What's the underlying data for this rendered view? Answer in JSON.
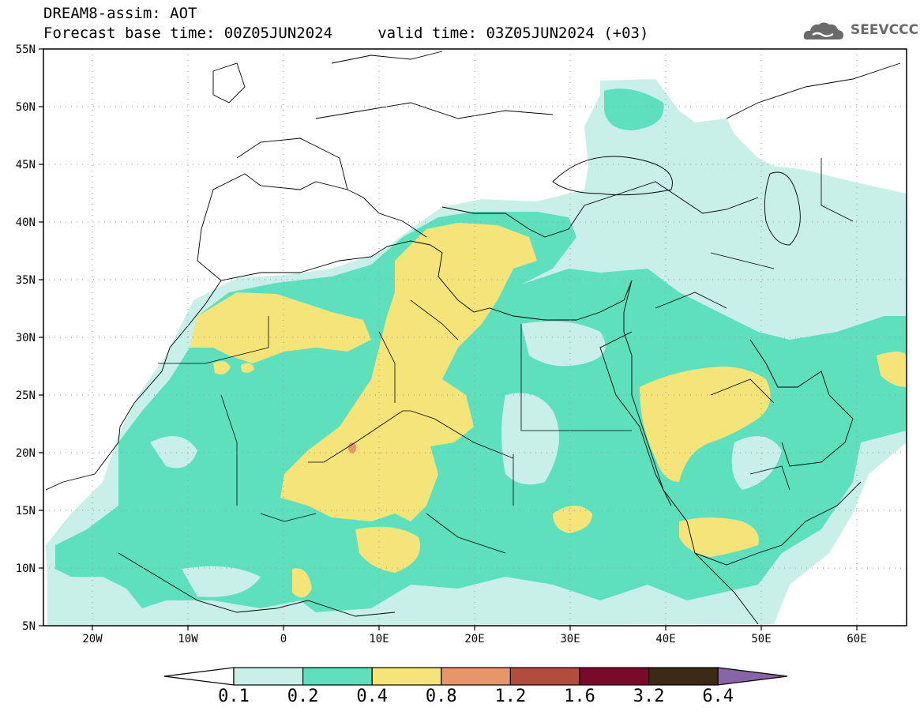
{
  "header": {
    "title_line1": "DREAM8-assim: AOT",
    "title_line2": "Forecast base time: 00Z05JUN2024     valid time: 03Z05JUN2024 (+03)",
    "logo_text": "SEEVCCC"
  },
  "axes": {
    "lat_labels": [
      "55N",
      "50N",
      "45N",
      "40N",
      "35N",
      "30N",
      "25N",
      "20N",
      "15N",
      "10N",
      "5N"
    ],
    "lon_labels": [
      "20W",
      "10W",
      "0",
      "10E",
      "20E",
      "30E",
      "40E",
      "50E",
      "60E"
    ],
    "lat_range": [
      5,
      55
    ],
    "lon_range": [
      -25,
      65
    ]
  },
  "colorbar": {
    "labels": [
      "0.1",
      "0.2",
      "0.4",
      "0.8",
      "1.2",
      "1.6",
      "3.2",
      "6.4"
    ],
    "colors": [
      "#ffffff",
      "#c8f0e8",
      "#5ee0bd",
      "#f5e47a",
      "#e8956a",
      "#b24c3c",
      "#7a0a2a",
      "#3c2a14",
      "#8a64a8"
    ]
  },
  "colors": {
    "aot_01_02": "#c8f0e8",
    "aot_02_04": "#5ee0bd",
    "aot_04_08": "#f5e47a",
    "aot_08_12": "#e8956a",
    "coast": "#000000"
  }
}
